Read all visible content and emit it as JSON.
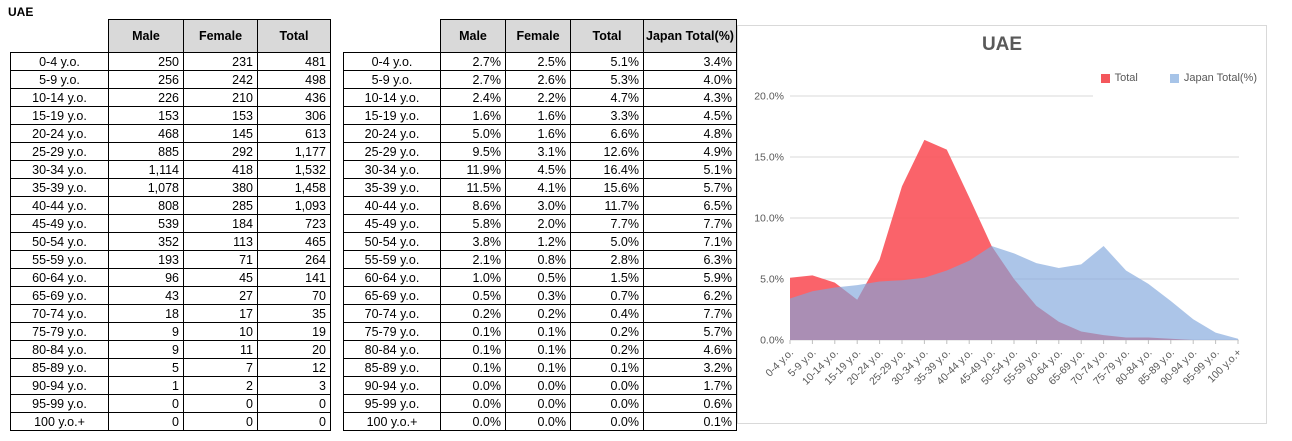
{
  "sheet": {
    "title": "UAE"
  },
  "age_groups": [
    "0-4 y.o.",
    "5-9 y.o.",
    "10-14 y.o.",
    "15-19 y.o.",
    "20-24 y.o.",
    "25-29 y.o.",
    "30-34 y.o.",
    "35-39 y.o.",
    "40-44 y.o.",
    "45-49 y.o.",
    "50-54 y.o.",
    "55-59 y.o.",
    "60-64 y.o.",
    "65-69 y.o.",
    "70-74 y.o.",
    "75-79 y.o.",
    "80-84 y.o.",
    "85-89 y.o.",
    "90-94 y.o.",
    "95-99 y.o.",
    "100 y.o.+"
  ],
  "count_table": {
    "headers": [
      "Male",
      "Female",
      "Total"
    ],
    "rows": [
      [
        "250",
        "231",
        "481"
      ],
      [
        "256",
        "242",
        "498"
      ],
      [
        "226",
        "210",
        "436"
      ],
      [
        "153",
        "153",
        "306"
      ],
      [
        "468",
        "145",
        "613"
      ],
      [
        "885",
        "292",
        "1,177"
      ],
      [
        "1,114",
        "418",
        "1,532"
      ],
      [
        "1,078",
        "380",
        "1,458"
      ],
      [
        "808",
        "285",
        "1,093"
      ],
      [
        "539",
        "184",
        "723"
      ],
      [
        "352",
        "113",
        "465"
      ],
      [
        "193",
        "71",
        "264"
      ],
      [
        "96",
        "45",
        "141"
      ],
      [
        "43",
        "27",
        "70"
      ],
      [
        "18",
        "17",
        "35"
      ],
      [
        "9",
        "10",
        "19"
      ],
      [
        "9",
        "11",
        "20"
      ],
      [
        "5",
        "7",
        "12"
      ],
      [
        "1",
        "2",
        "3"
      ],
      [
        "0",
        "0",
        "0"
      ],
      [
        "0",
        "0",
        "0"
      ]
    ]
  },
  "percent_table": {
    "headers": [
      "Male",
      "Female",
      "Total",
      "Japan Total(%)"
    ],
    "rows": [
      [
        "2.7%",
        "2.5%",
        "5.1%",
        "3.4%"
      ],
      [
        "2.7%",
        "2.6%",
        "5.3%",
        "4.0%"
      ],
      [
        "2.4%",
        "2.2%",
        "4.7%",
        "4.3%"
      ],
      [
        "1.6%",
        "1.6%",
        "3.3%",
        "4.5%"
      ],
      [
        "5.0%",
        "1.6%",
        "6.6%",
        "4.8%"
      ],
      [
        "9.5%",
        "3.1%",
        "12.6%",
        "4.9%"
      ],
      [
        "11.9%",
        "4.5%",
        "16.4%",
        "5.1%"
      ],
      [
        "11.5%",
        "4.1%",
        "15.6%",
        "5.7%"
      ],
      [
        "8.6%",
        "3.0%",
        "11.7%",
        "6.5%"
      ],
      [
        "5.8%",
        "2.0%",
        "7.7%",
        "7.7%"
      ],
      [
        "3.8%",
        "1.2%",
        "5.0%",
        "7.1%"
      ],
      [
        "2.1%",
        "0.8%",
        "2.8%",
        "6.3%"
      ],
      [
        "1.0%",
        "0.5%",
        "1.5%",
        "5.9%"
      ],
      [
        "0.5%",
        "0.3%",
        "0.7%",
        "6.2%"
      ],
      [
        "0.2%",
        "0.2%",
        "0.4%",
        "7.7%"
      ],
      [
        "0.1%",
        "0.1%",
        "0.2%",
        "5.7%"
      ],
      [
        "0.1%",
        "0.1%",
        "0.2%",
        "4.6%"
      ],
      [
        "0.1%",
        "0.1%",
        "0.1%",
        "3.2%"
      ],
      [
        "0.0%",
        "0.0%",
        "0.0%",
        "1.7%"
      ],
      [
        "0.0%",
        "0.0%",
        "0.0%",
        "0.6%"
      ],
      [
        "0.0%",
        "0.0%",
        "0.0%",
        "0.1%"
      ]
    ]
  },
  "chart_data": {
    "type": "area",
    "title": "UAE",
    "categories": [
      "0-4 y.o.",
      "5-9 y.o.",
      "10-14 y.o.",
      "15-19 y.o.",
      "20-24 y.o.",
      "25-29 y.o.",
      "30-34 y.o.",
      "35-39 y.o.",
      "40-44 y.o.",
      "45-49 y.o.",
      "50-54 y.o.",
      "55-59 y.o.",
      "60-64 y.o.",
      "65-69 y.o.",
      "70-74 y.o.",
      "75-79 y.o.",
      "80-84 y.o.",
      "85-89 y.o.",
      "90-94 y.o.",
      "95-99 y.o.",
      "100 y.o.+"
    ],
    "series": [
      {
        "name": "Total",
        "values": [
          5.1,
          5.3,
          4.7,
          3.3,
          6.6,
          12.6,
          16.4,
          15.6,
          11.7,
          7.7,
          5.0,
          2.8,
          1.5,
          0.7,
          0.4,
          0.2,
          0.2,
          0.1,
          0.0,
          0.0,
          0.0
        ],
        "color": "#F9525A",
        "opacity": 0.9
      },
      {
        "name": "Japan Total(%)",
        "values": [
          3.4,
          4.0,
          4.3,
          4.5,
          4.8,
          4.9,
          5.1,
          5.7,
          6.5,
          7.7,
          7.1,
          6.3,
          5.9,
          6.2,
          7.7,
          5.7,
          4.6,
          3.2,
          1.7,
          0.6,
          0.1
        ],
        "color": "#7FA6DB",
        "opacity": 0.65
      }
    ],
    "legend": [
      {
        "label": "Total",
        "swatch": "#F4575C"
      },
      {
        "label": "Japan Total(%)",
        "swatch": "#A7C4E8"
      }
    ],
    "legend_position": "top-right",
    "ylim": [
      0,
      20
    ],
    "ytick_labels": [
      "0.0%",
      "5.0%",
      "10.0%",
      "15.0%",
      "20.0%"
    ],
    "grid": true,
    "grid_color": "#D9D9D9",
    "tick_color": "#BFBFBF",
    "label_color": "#595959",
    "title_color": "#595959"
  }
}
